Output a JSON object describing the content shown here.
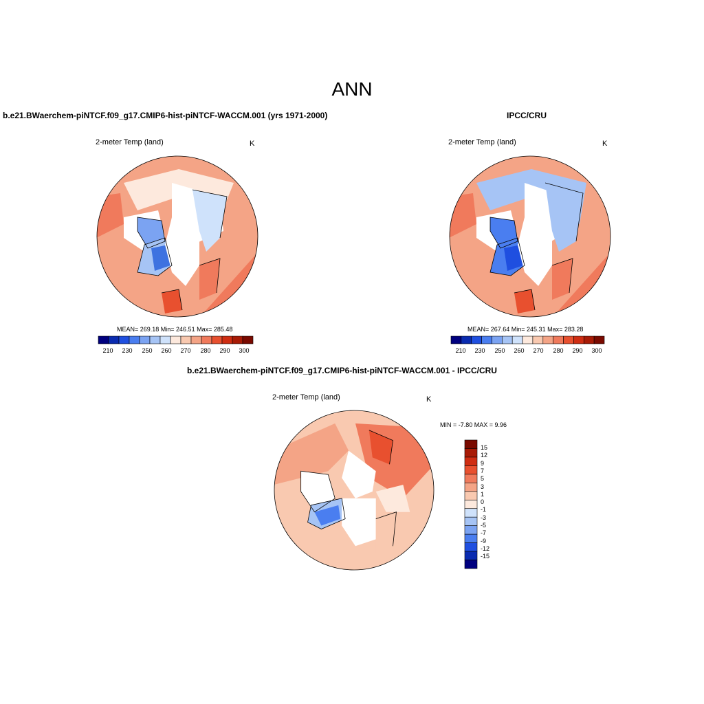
{
  "main_title": "ANN",
  "panels": [
    {
      "title": "b.e21.BWaerchem-piNTCF.f09_g17.CMIP6-hist-piNTCF-WACCM.001 (yrs 1971-2000)",
      "variable": "2-meter Temp (land)",
      "units": "K",
      "stats": "MEAN= 269.18  Min= 246.51  Max= 285.48",
      "colorbar_ticks": [
        "210",
        "230",
        "250",
        "260",
        "270",
        "280",
        "290",
        "300"
      ]
    },
    {
      "title": "IPCC/CRU",
      "variable": "2-meter Temp (land)",
      "units": "K",
      "stats": "MEAN= 267.64  Min= 245.31  Max= 283.28",
      "colorbar_ticks": [
        "210",
        "230",
        "250",
        "260",
        "270",
        "280",
        "290",
        "300"
      ]
    },
    {
      "title": "b.e21.BWaerchem-piNTCF.f09_g17.CMIP6-hist-piNTCF-WACCM.001 - IPCC/CRU",
      "variable": "2-meter Temp (land)",
      "units": "K",
      "stats": "MIN =  -7.80 MAX =   9.96",
      "colorbar_ticks": [
        "15",
        "12",
        "9",
        "7",
        "5",
        "3",
        "1",
        "0",
        "-1",
        "-3",
        "-5",
        "-7",
        "-9",
        "-12",
        "-15"
      ]
    }
  ],
  "colors": {
    "abs_scale": [
      "#00007f",
      "#0a2bb0",
      "#1f4fe0",
      "#4a7ef0",
      "#7ba3f2",
      "#a6c4f5",
      "#cfe2fb",
      "#fde9dd",
      "#f9c9b0",
      "#f4a486",
      "#f07a5c",
      "#e8502f",
      "#cf2d12",
      "#a81b06",
      "#7a0a00"
    ],
    "diff_scale": [
      "#7a0a00",
      "#a81b06",
      "#cf2d12",
      "#e8502f",
      "#f07a5c",
      "#f4a486",
      "#f9c9b0",
      "#fde9dd",
      "#cfe2fb",
      "#a6c4f5",
      "#7ba3f2",
      "#4a7ef0",
      "#1f4fe0",
      "#0a2bb0",
      "#00007f"
    ],
    "land_warm": "#f2a07e",
    "land_cool": "#cfe2fb",
    "ice_blue": "#3d72e0"
  }
}
